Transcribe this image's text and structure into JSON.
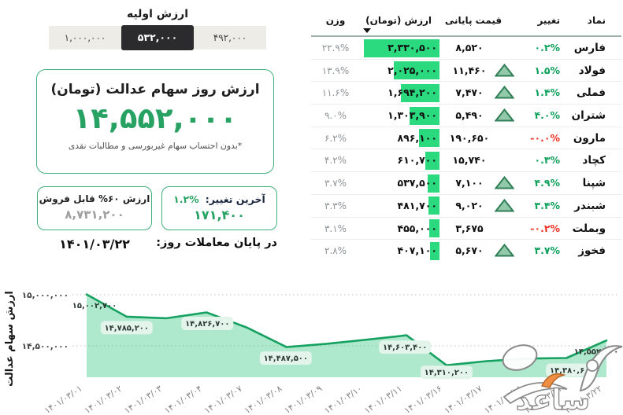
{
  "initial_value": {
    "title": "ارزش اولیه",
    "options": [
      "۴۹۲,۰۰۰",
      "۵۳۲,۰۰۰",
      "۱,۰۰۰,۰۰۰"
    ],
    "selected_index": 1
  },
  "current_value": {
    "title": "ارزش روز سهام عدالت (تومان)",
    "value": "۱۴,۵۵۲,۰۰۰",
    "note": "*بدون احتساب سهام غیربورسی و مطالبات نقدی"
  },
  "sellable": {
    "label": "ارزش ۶۰% قابل فروش",
    "value": "۸,۷۳۱,۲۰۰"
  },
  "last_change": {
    "label": "آخرین تغییر:",
    "percent": "۱.۲%",
    "value": "۱۷۱,۴۰۰"
  },
  "footer": {
    "end_of_trading_label": "در پایان معاملات روز:",
    "date": "۱۴۰۱/۰۳/۲۲"
  },
  "table": {
    "columns": [
      "نماد",
      "تغییر",
      "قیمت پایانی",
      "ارزش (تومان)",
      "وزن"
    ],
    "rows": [
      {
        "symbol": "فارس",
        "change": "۰.۲%",
        "direction": "up",
        "triangle": false,
        "price": "۸,۵۲۰",
        "value": "۳,۳۳۰,۵۰۰",
        "weight": "۲۲.۹%"
      },
      {
        "symbol": "فولاد",
        "change": "۱.۵%",
        "direction": "up",
        "triangle": true,
        "price": "۱۱,۴۶۰",
        "value": "۲,۰۲۵,۰۰۰",
        "weight": "۱۳.۹%"
      },
      {
        "symbol": "فملی",
        "change": "۱.۴%",
        "direction": "up",
        "triangle": true,
        "price": "۷,۴۷۰",
        "value": "۱,۶۹۴,۲۰۰",
        "weight": "۱۱.۶%"
      },
      {
        "symbol": "شتران",
        "change": "۴.۰%",
        "direction": "up",
        "triangle": true,
        "price": "۵,۴۹۰",
        "value": "۱,۳۰۳,۹۰۰",
        "weight": "۹.۰%"
      },
      {
        "symbol": "مارون",
        "change": "-۰.۰%",
        "direction": "down",
        "triangle": false,
        "price": "۱۹۰,۶۵۰",
        "value": "۸۹۶,۱۰۰",
        "weight": "۶.۲%"
      },
      {
        "symbol": "کچاد",
        "change": "۰.۳%",
        "direction": "up",
        "triangle": false,
        "price": "۱۵,۷۴۰",
        "value": "۶۱۰,۷۰۰",
        "weight": "۴.۲%"
      },
      {
        "symbol": "شپنا",
        "change": "۴.۹%",
        "direction": "up",
        "triangle": true,
        "price": "۷,۱۰۰",
        "value": "۵۳۷,۵۰۰",
        "weight": "۳.۷%"
      },
      {
        "symbol": "شبندر",
        "change": "۳.۴%",
        "direction": "up",
        "triangle": true,
        "price": "۹,۰۲۰",
        "value": "۴۸۱,۷۰۰",
        "weight": "۳.۳%"
      },
      {
        "symbol": "وبملت",
        "change": "-۰.۲%",
        "direction": "down",
        "triangle": false,
        "price": "۳,۶۷۵",
        "value": "۴۵۵,۰۰۰",
        "weight": "۳.۱%"
      },
      {
        "symbol": "فخوز",
        "change": "۳.۷%",
        "direction": "up",
        "triangle": true,
        "price": "۵,۶۷۰",
        "value": "۴۰۷,۱۰۰",
        "weight": "۲.۸%"
      }
    ]
  },
  "chart_data": {
    "type": "area",
    "title": "",
    "ylabel": "ارزش سهام عدالت",
    "x": [
      "۱۴۰۱/۰۳/۰۱",
      "۱۴۰۱/۰۳/۰۲",
      "۱۴۰۱/۰۳/۰۳",
      "۱۴۰۱/۰۳/۰۴",
      "۱۴۰۱/۰۳/۰۷",
      "۱۴۰۱/۰۳/۰۸",
      "۱۴۰۱/۰۳/۰۹",
      "۱۴۰۱/۰۳/۱۰",
      "۱۴۰۱/۰۳/۱۱",
      "۱۴۰۱/۰۳/۱۶",
      "۱۴۰۱/۰۳/۱۷",
      "۱۴۰۱/۰۳/۱۸",
      "۱۴۰۱/۰۳/۲۱",
      "۱۴۰۱/۰۳/۲۲"
    ],
    "values": [
      15002700,
      14785200,
      14770000,
      14826700,
      14680000,
      14487500,
      14520000,
      14560000,
      14603400,
      14310200,
      14350000,
      14375000,
      14380600,
      14552000
    ],
    "ylim": [
      14200000,
      15100000
    ],
    "yticks": [
      {
        "v": 15000000,
        "label": "۱۵,۰۰۰,۰۰۰"
      },
      {
        "v": 14500000,
        "label": "۱۴,۵۰۰,۰۰۰"
      }
    ],
    "point_labels": [
      {
        "index": 0,
        "label": "۱۵,۰۰۲,۷۰۰"
      },
      {
        "index": 1,
        "label": "۱۴,۷۸۵,۲۰۰"
      },
      {
        "index": 3,
        "label": "۱۴,۸۲۶,۷۰۰"
      },
      {
        "index": 5,
        "label": "۱۴,۴۸۷,۵۰۰"
      },
      {
        "index": 8,
        "label": "۱۴,۶۰۳,۴۰۰"
      },
      {
        "index": 9,
        "label": "۱۴,۳۱۰,۲۰۰"
      },
      {
        "index": 12,
        "label": "۱۴,۳۸۰,۶۰۰"
      },
      {
        "index": 13,
        "label": "۱۴,۵۵۲,۰۰۰"
      }
    ],
    "colors": {
      "line": "#17a161",
      "fill": "rgba(62,200,135,0.42)",
      "bar": "#2bd97e"
    }
  },
  "watermark": {
    "text": "ساعد"
  }
}
